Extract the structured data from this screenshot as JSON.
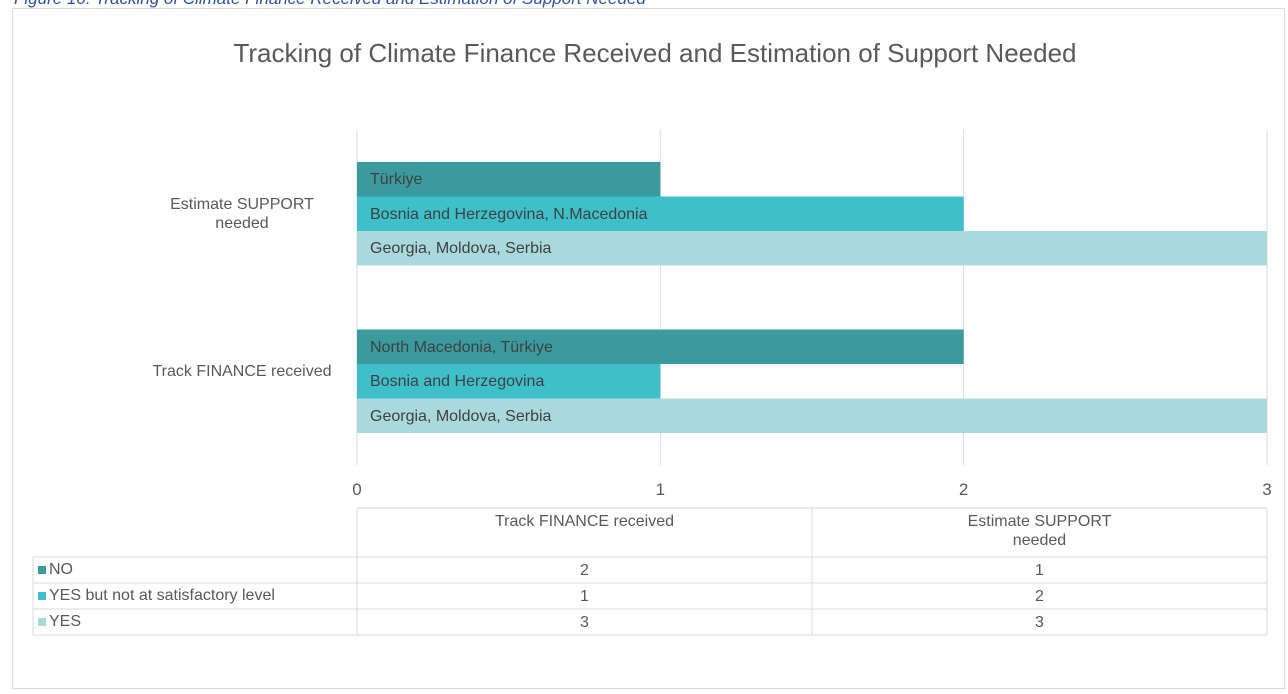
{
  "figure_caption": "Figure 10: Tracking of Climate Finance Received and Estimation of Support Needed",
  "chart_data": {
    "type": "bar",
    "orientation": "horizontal",
    "title": "Tracking of Climate Finance Received and Estimation of Support Needed",
    "categories": [
      "Track FINANCE received",
      "Estimate SUPPORT needed"
    ],
    "series": [
      {
        "name": "NO",
        "color": "#3a9a9e",
        "values": [
          2,
          1
        ],
        "labels": [
          "North Macedonia, Türkiye",
          "Türkiye"
        ]
      },
      {
        "name": "YES but not at satisfactory level",
        "color": "#3fbfca",
        "values": [
          1,
          2
        ],
        "labels": [
          "Bosnia and Herzegovina",
          "Bosnia and Herzegovina, N.Macedonia"
        ]
      },
      {
        "name": "YES",
        "color": "#a9d9dd",
        "values": [
          3,
          3
        ],
        "labels": [
          "Georgia, Moldova, Serbia",
          "Georgia, Moldova, Serbia"
        ]
      }
    ],
    "xlim": [
      0,
      3
    ],
    "xticks": [
      0,
      1,
      2,
      3
    ],
    "grid": true,
    "data_table": true
  }
}
